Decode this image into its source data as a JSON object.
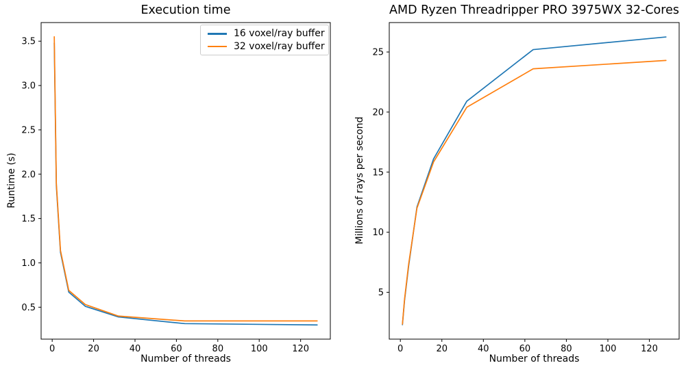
{
  "chart_data": [
    {
      "type": "line",
      "title": "Execution time",
      "xlabel": "Number of threads",
      "ylabel": "Runtime (s)",
      "x": [
        1,
        2,
        4,
        8,
        16,
        32,
        64,
        128
      ],
      "series": [
        {
          "name": "16 voxel/ray buffer",
          "color": "#1f77b4",
          "values": [
            3.48,
            1.87,
            1.12,
            0.67,
            0.51,
            0.39,
            0.315,
            0.3
          ]
        },
        {
          "name": "32 voxel/ray buffer",
          "color": "#ff7f0e",
          "values": [
            3.55,
            1.9,
            1.14,
            0.69,
            0.53,
            0.4,
            0.345,
            0.345
          ]
        }
      ],
      "xlim": [
        -5.35,
        134.35
      ],
      "ylim": [
        0.14,
        3.71
      ],
      "xticks": [
        0,
        20,
        40,
        60,
        80,
        100,
        120
      ],
      "xtick_labels": [
        "0",
        "20",
        "40",
        "60",
        "80",
        "100",
        "120"
      ],
      "yticks": [
        0.5,
        1.0,
        1.5,
        2.0,
        2.5,
        3.0,
        3.5
      ],
      "ytick_labels": [
        "0.5",
        "1.0",
        "1.5",
        "2.0",
        "2.5",
        "3.0",
        "3.5"
      ],
      "grid": false,
      "legend": {
        "visible": true,
        "position": "upper right"
      }
    },
    {
      "type": "line",
      "title": "AMD Ryzen Threadripper PRO 3975WX 32-Cores",
      "xlabel": "Number of threads",
      "ylabel": "Millions of rays per second",
      "x": [
        1,
        2,
        4,
        8,
        16,
        32,
        64,
        128
      ],
      "series": [
        {
          "name": "16 voxel/ray buffer",
          "color": "#1f77b4",
          "values": [
            2.3,
            4.3,
            7.2,
            12.1,
            16.1,
            20.9,
            25.2,
            26.25
          ]
        },
        {
          "name": "32 voxel/ray buffer",
          "color": "#ff7f0e",
          "values": [
            2.35,
            4.4,
            7.35,
            12.0,
            15.85,
            20.4,
            23.6,
            24.3
          ]
        }
      ],
      "xlim": [
        -5.35,
        134.35
      ],
      "ylim": [
        1.1,
        27.45
      ],
      "xticks": [
        0,
        20,
        40,
        60,
        80,
        100,
        120
      ],
      "xtick_labels": [
        "0",
        "20",
        "40",
        "60",
        "80",
        "100",
        "120"
      ],
      "yticks": [
        5,
        10,
        15,
        20,
        25
      ],
      "ytick_labels": [
        "5",
        "10",
        "15",
        "20",
        "25"
      ],
      "grid": false,
      "legend": {
        "visible": false,
        "position": null
      }
    }
  ]
}
